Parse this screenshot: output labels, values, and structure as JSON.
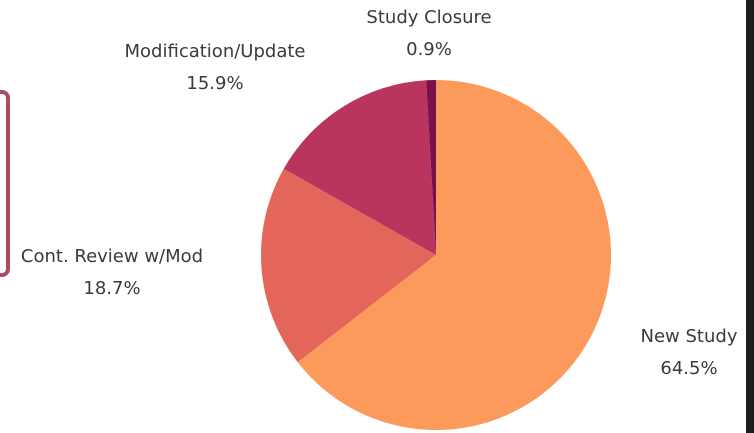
{
  "chart_data": {
    "type": "pie",
    "categories": [
      "New Study",
      "Cont. Review w/Mod",
      "Modification/Update",
      "Study Closure"
    ],
    "values": [
      64.5,
      18.7,
      15.9,
      0.9
    ],
    "value_labels": [
      "64.5%",
      "18.7%",
      "15.9%",
      "0.9%"
    ],
    "colors": [
      "#fc9a5c",
      "#e4665a",
      "#b9355d",
      "#7c104f"
    ]
  }
}
